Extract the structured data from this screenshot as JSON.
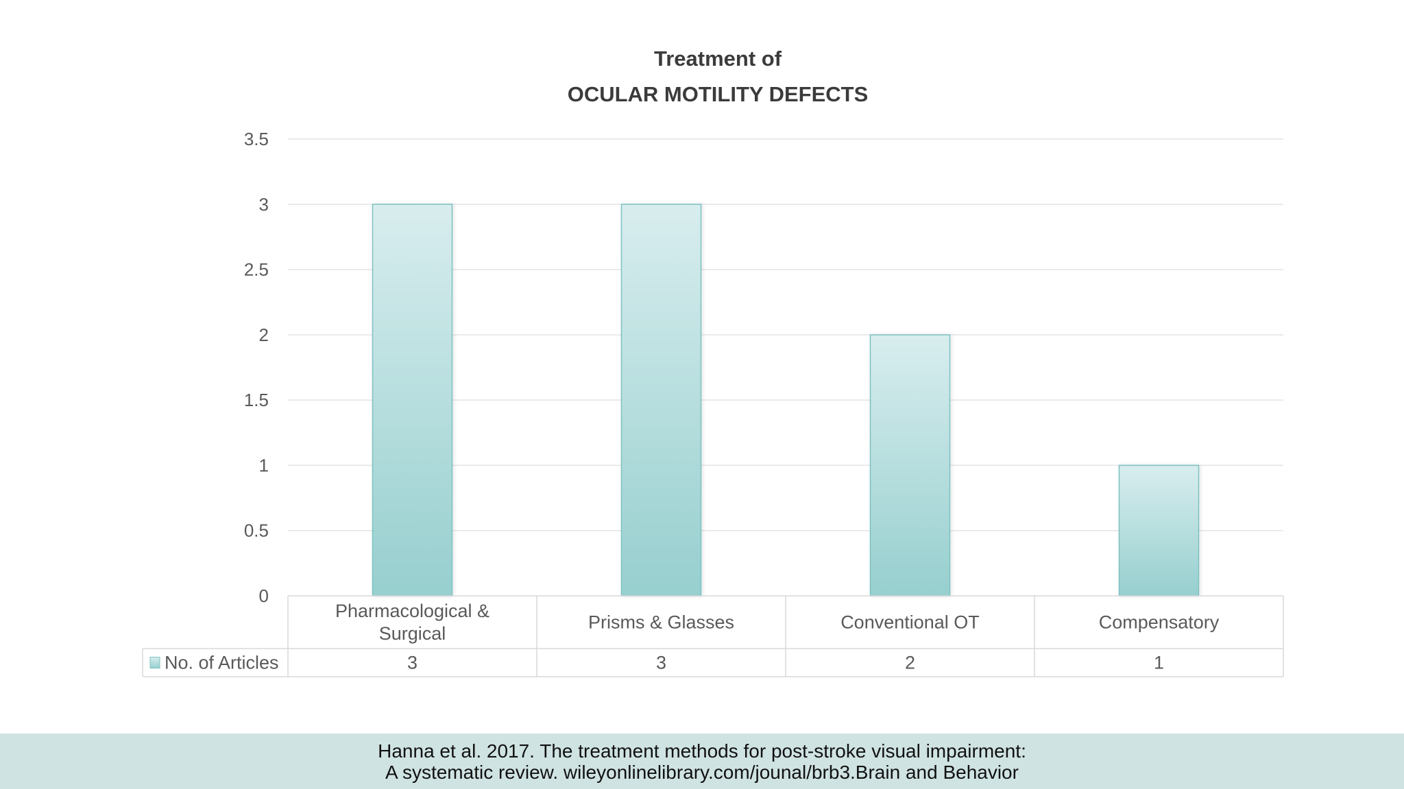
{
  "chart_data": {
    "type": "bar",
    "title_lines": [
      "Treatment of",
      "OCULAR MOTILITY DEFECTS"
    ],
    "categories": [
      [
        "Pharmacological &",
        "Surgical"
      ],
      [
        "Prisms & Glasses"
      ],
      [
        "Conventional OT"
      ],
      [
        "Compensatory"
      ]
    ],
    "series": [
      {
        "name": "No. of Articles",
        "values": [
          3,
          3,
          2,
          1
        ]
      }
    ],
    "value_labels": [
      "3",
      "3",
      "2",
      "1"
    ],
    "y_ticks": [
      "0",
      "0.5",
      "1",
      "1.5",
      "2",
      "2.5",
      "3",
      "3.5"
    ],
    "ylim": [
      0,
      3.5
    ],
    "grid": true,
    "data_table": true,
    "colors": {
      "bar_top": "#d8edee",
      "bar_bottom": "#97cfcf",
      "bar_edge": "#7fc1c1",
      "grid": "#e4e4e4",
      "table_border": "#d9d9d9"
    }
  },
  "footer": {
    "line1": "Hanna et al. 2017. The treatment methods for post-stroke visual impairment:",
    "line2": "A systematic review. wileyonlinelibrary.com/jounal/brb3.Brain and Behavior"
  }
}
